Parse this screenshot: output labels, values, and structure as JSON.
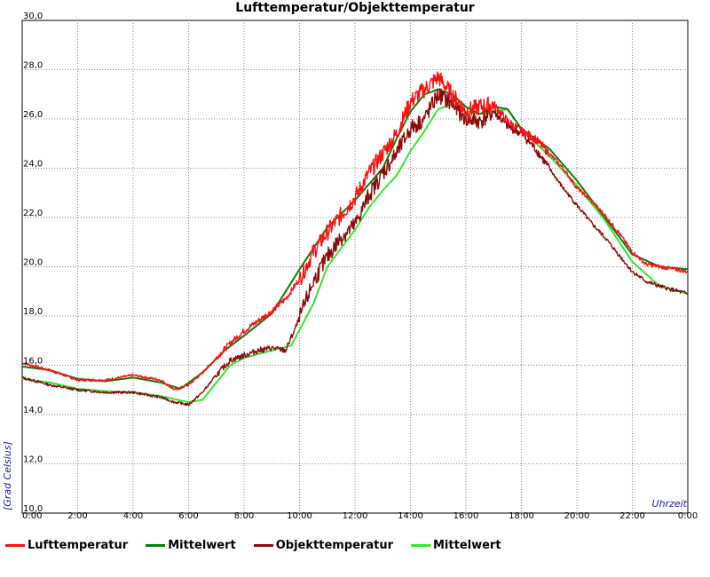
{
  "chart_data": {
    "type": "line",
    "title": "Lufttemperatur/Objekttemperatur",
    "xlabel": "Uhrzeit",
    "ylabel": "[Grad Celsius]",
    "ylim": [
      10.0,
      30.0
    ],
    "xlim": [
      0,
      24
    ],
    "y_ticks": [
      "10,0",
      "12,0",
      "14,0",
      "16,0",
      "18,0",
      "20,0",
      "22,0",
      "24,0",
      "26,0",
      "28,0",
      "30,0"
    ],
    "x_ticks": [
      "0:00",
      "2:00",
      "4:00",
      "6:00",
      "8:00",
      "10:00",
      "12:00",
      "14:00",
      "16:00",
      "18:00",
      "20:00",
      "22:00",
      "0:00"
    ],
    "grid": true,
    "legend_position": "bottom",
    "series": [
      {
        "name": "Lufttemperatur",
        "color": "#ff1010",
        "x": [
          0,
          1,
          2,
          3,
          4,
          4.5,
          5,
          5.5,
          6,
          6.5,
          7,
          7.5,
          8,
          8.5,
          9,
          9.5,
          10,
          10.5,
          11,
          11.5,
          12,
          12.5,
          13,
          13.5,
          14,
          14.5,
          15,
          15.5,
          16,
          16.5,
          17,
          17.5,
          18,
          18.5,
          19,
          19.5,
          20,
          20.5,
          21,
          21.5,
          22,
          22.5,
          23,
          24
        ],
        "y": [
          16.1,
          15.8,
          15.4,
          15.4,
          15.6,
          15.5,
          15.4,
          15.0,
          15.2,
          15.7,
          16.3,
          16.9,
          17.4,
          17.8,
          18.2,
          18.7,
          19.5,
          20.6,
          21.4,
          22.1,
          22.8,
          23.8,
          24.6,
          25.4,
          26.7,
          27.2,
          27.7,
          27.0,
          26.3,
          26.5,
          26.6,
          25.9,
          25.5,
          25.2,
          24.6,
          24.0,
          23.2,
          22.7,
          22.1,
          21.4,
          20.6,
          20.1,
          20.0,
          19.8
        ]
      },
      {
        "name": "Mittelwert",
        "color": "#0f7a10",
        "x": [
          0,
          1,
          2,
          3,
          4,
          5,
          5.7,
          6.5,
          7.3,
          8,
          9,
          10,
          11,
          12,
          13,
          13.5,
          14,
          14.5,
          15,
          15.5,
          16,
          16.5,
          17,
          17.5,
          18,
          19,
          20,
          21,
          22,
          23,
          24
        ],
        "y": [
          15.95,
          15.8,
          15.45,
          15.35,
          15.5,
          15.3,
          15.05,
          15.7,
          16.6,
          17.2,
          18.1,
          19.9,
          21.6,
          22.7,
          24.0,
          25.2,
          26.3,
          27.0,
          27.2,
          27.0,
          26.5,
          26.2,
          26.5,
          26.4,
          25.6,
          24.8,
          23.5,
          22.0,
          20.5,
          20.0,
          19.9
        ]
      },
      {
        "name": "Objekttemperatur",
        "color": "#8b0a0a",
        "x": [
          0,
          1,
          2,
          3,
          4,
          5,
          5.5,
          6,
          6.5,
          7,
          7.5,
          8,
          8.5,
          9,
          9.5,
          10,
          10.5,
          11,
          11.5,
          12,
          12.5,
          13,
          13.5,
          14,
          14.5,
          15,
          15.5,
          16,
          16.5,
          17,
          17.5,
          18,
          18.5,
          19,
          19.5,
          20,
          20.5,
          21,
          21.5,
          22,
          22.5,
          23,
          24
        ],
        "y": [
          15.5,
          15.2,
          15.0,
          14.9,
          14.9,
          14.7,
          14.5,
          14.4,
          14.9,
          15.6,
          16.2,
          16.4,
          16.6,
          16.7,
          16.6,
          17.9,
          19.4,
          20.4,
          21.2,
          21.7,
          22.9,
          23.8,
          24.6,
          25.6,
          26.0,
          27.0,
          26.6,
          26.0,
          25.9,
          26.3,
          25.7,
          25.4,
          24.8,
          24.0,
          23.2,
          22.5,
          21.8,
          21.2,
          20.5,
          19.8,
          19.4,
          19.2,
          18.9
        ]
      },
      {
        "name": "Mittelwert",
        "color": "#33e633",
        "x": [
          0,
          1,
          2,
          3,
          4,
          5,
          6,
          6.5,
          7,
          7.5,
          8,
          9,
          9.7,
          10.5,
          11,
          12,
          12.5,
          13,
          13.5,
          14,
          14.5,
          15,
          15.5,
          16,
          16.5,
          17,
          17.5,
          18,
          19,
          20,
          21,
          22,
          23,
          24
        ],
        "y": [
          15.45,
          15.3,
          15.05,
          14.95,
          14.9,
          14.75,
          14.5,
          14.6,
          15.3,
          16.0,
          16.3,
          16.6,
          16.8,
          18.5,
          20.0,
          21.5,
          22.4,
          23.1,
          23.7,
          24.7,
          25.5,
          26.4,
          26.6,
          26.3,
          26.2,
          26.3,
          26.4,
          25.6,
          24.5,
          23.3,
          21.9,
          20.2,
          19.2,
          18.9
        ]
      }
    ]
  }
}
